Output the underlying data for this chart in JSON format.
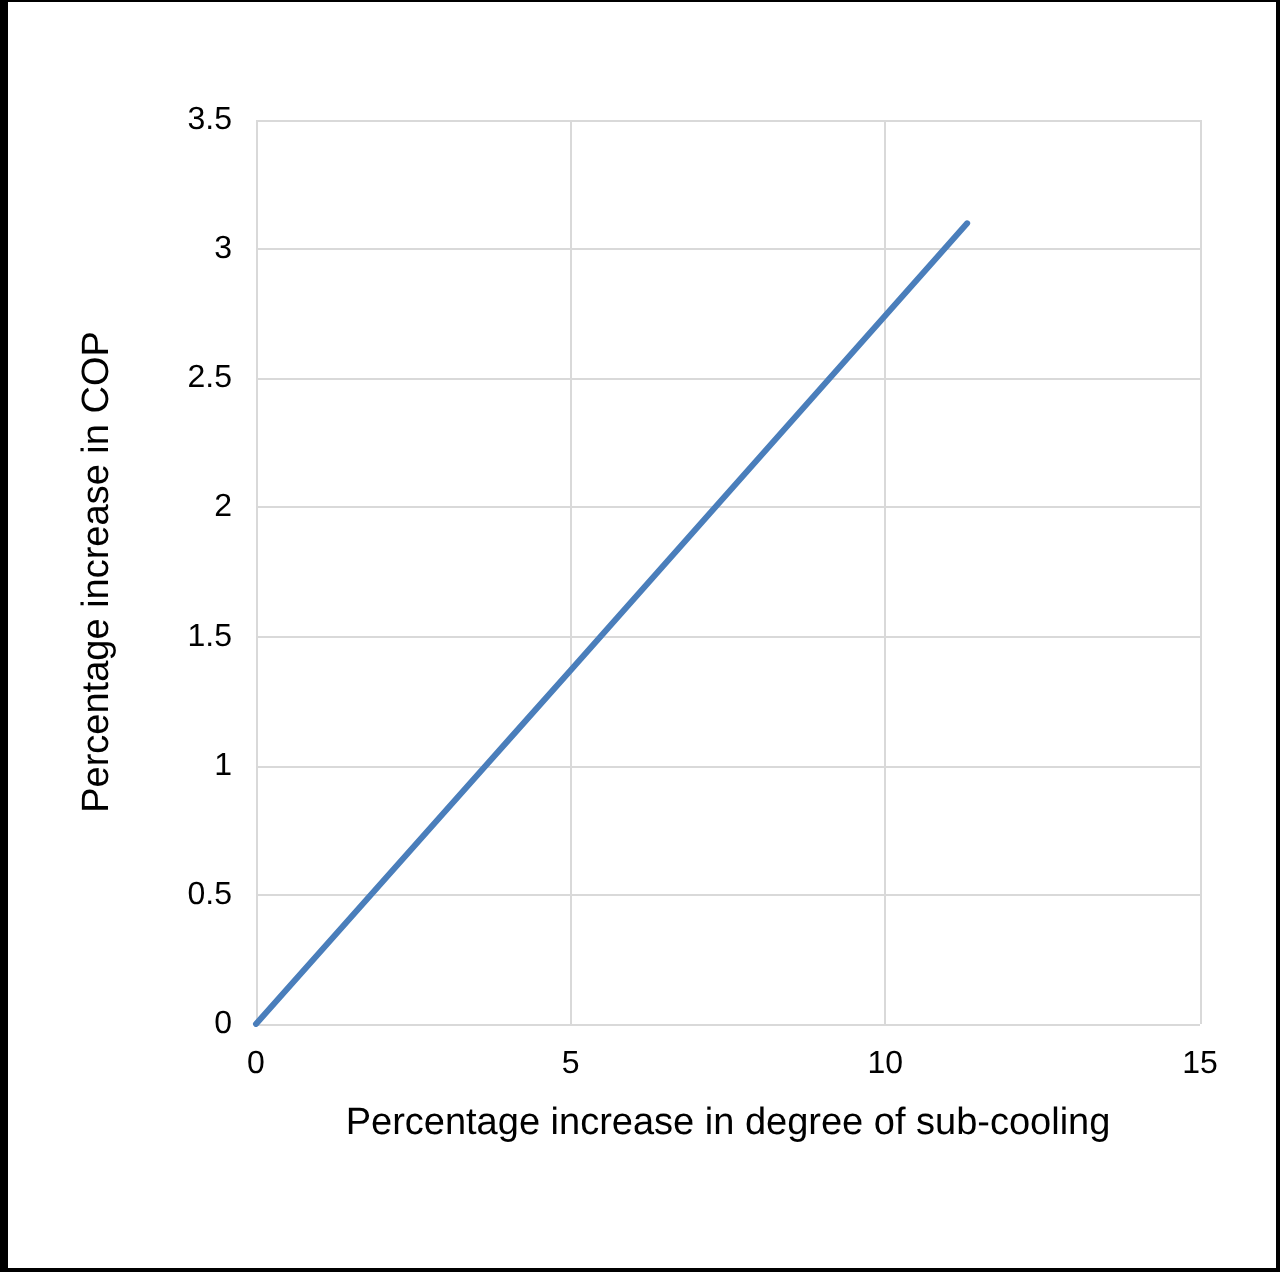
{
  "chart_data": {
    "type": "line",
    "xlabel": "Percentage increase in degree of sub-cooling",
    "ylabel": "Percentage increase in COP",
    "x": [
      0,
      5,
      11.3
    ],
    "series": [
      {
        "color": "#4a7ebb",
        "values": [
          0,
          1.37,
          3.1
        ]
      }
    ],
    "xlim": [
      0,
      15
    ],
    "xticks": [
      0,
      5,
      10,
      15
    ],
    "ylim": [
      0,
      3.5
    ],
    "yticks": [
      0,
      0.5,
      1,
      1.5,
      2,
      2.5,
      3,
      3.5
    ],
    "grid": true,
    "marker": "none",
    "line_style": "solid"
  }
}
